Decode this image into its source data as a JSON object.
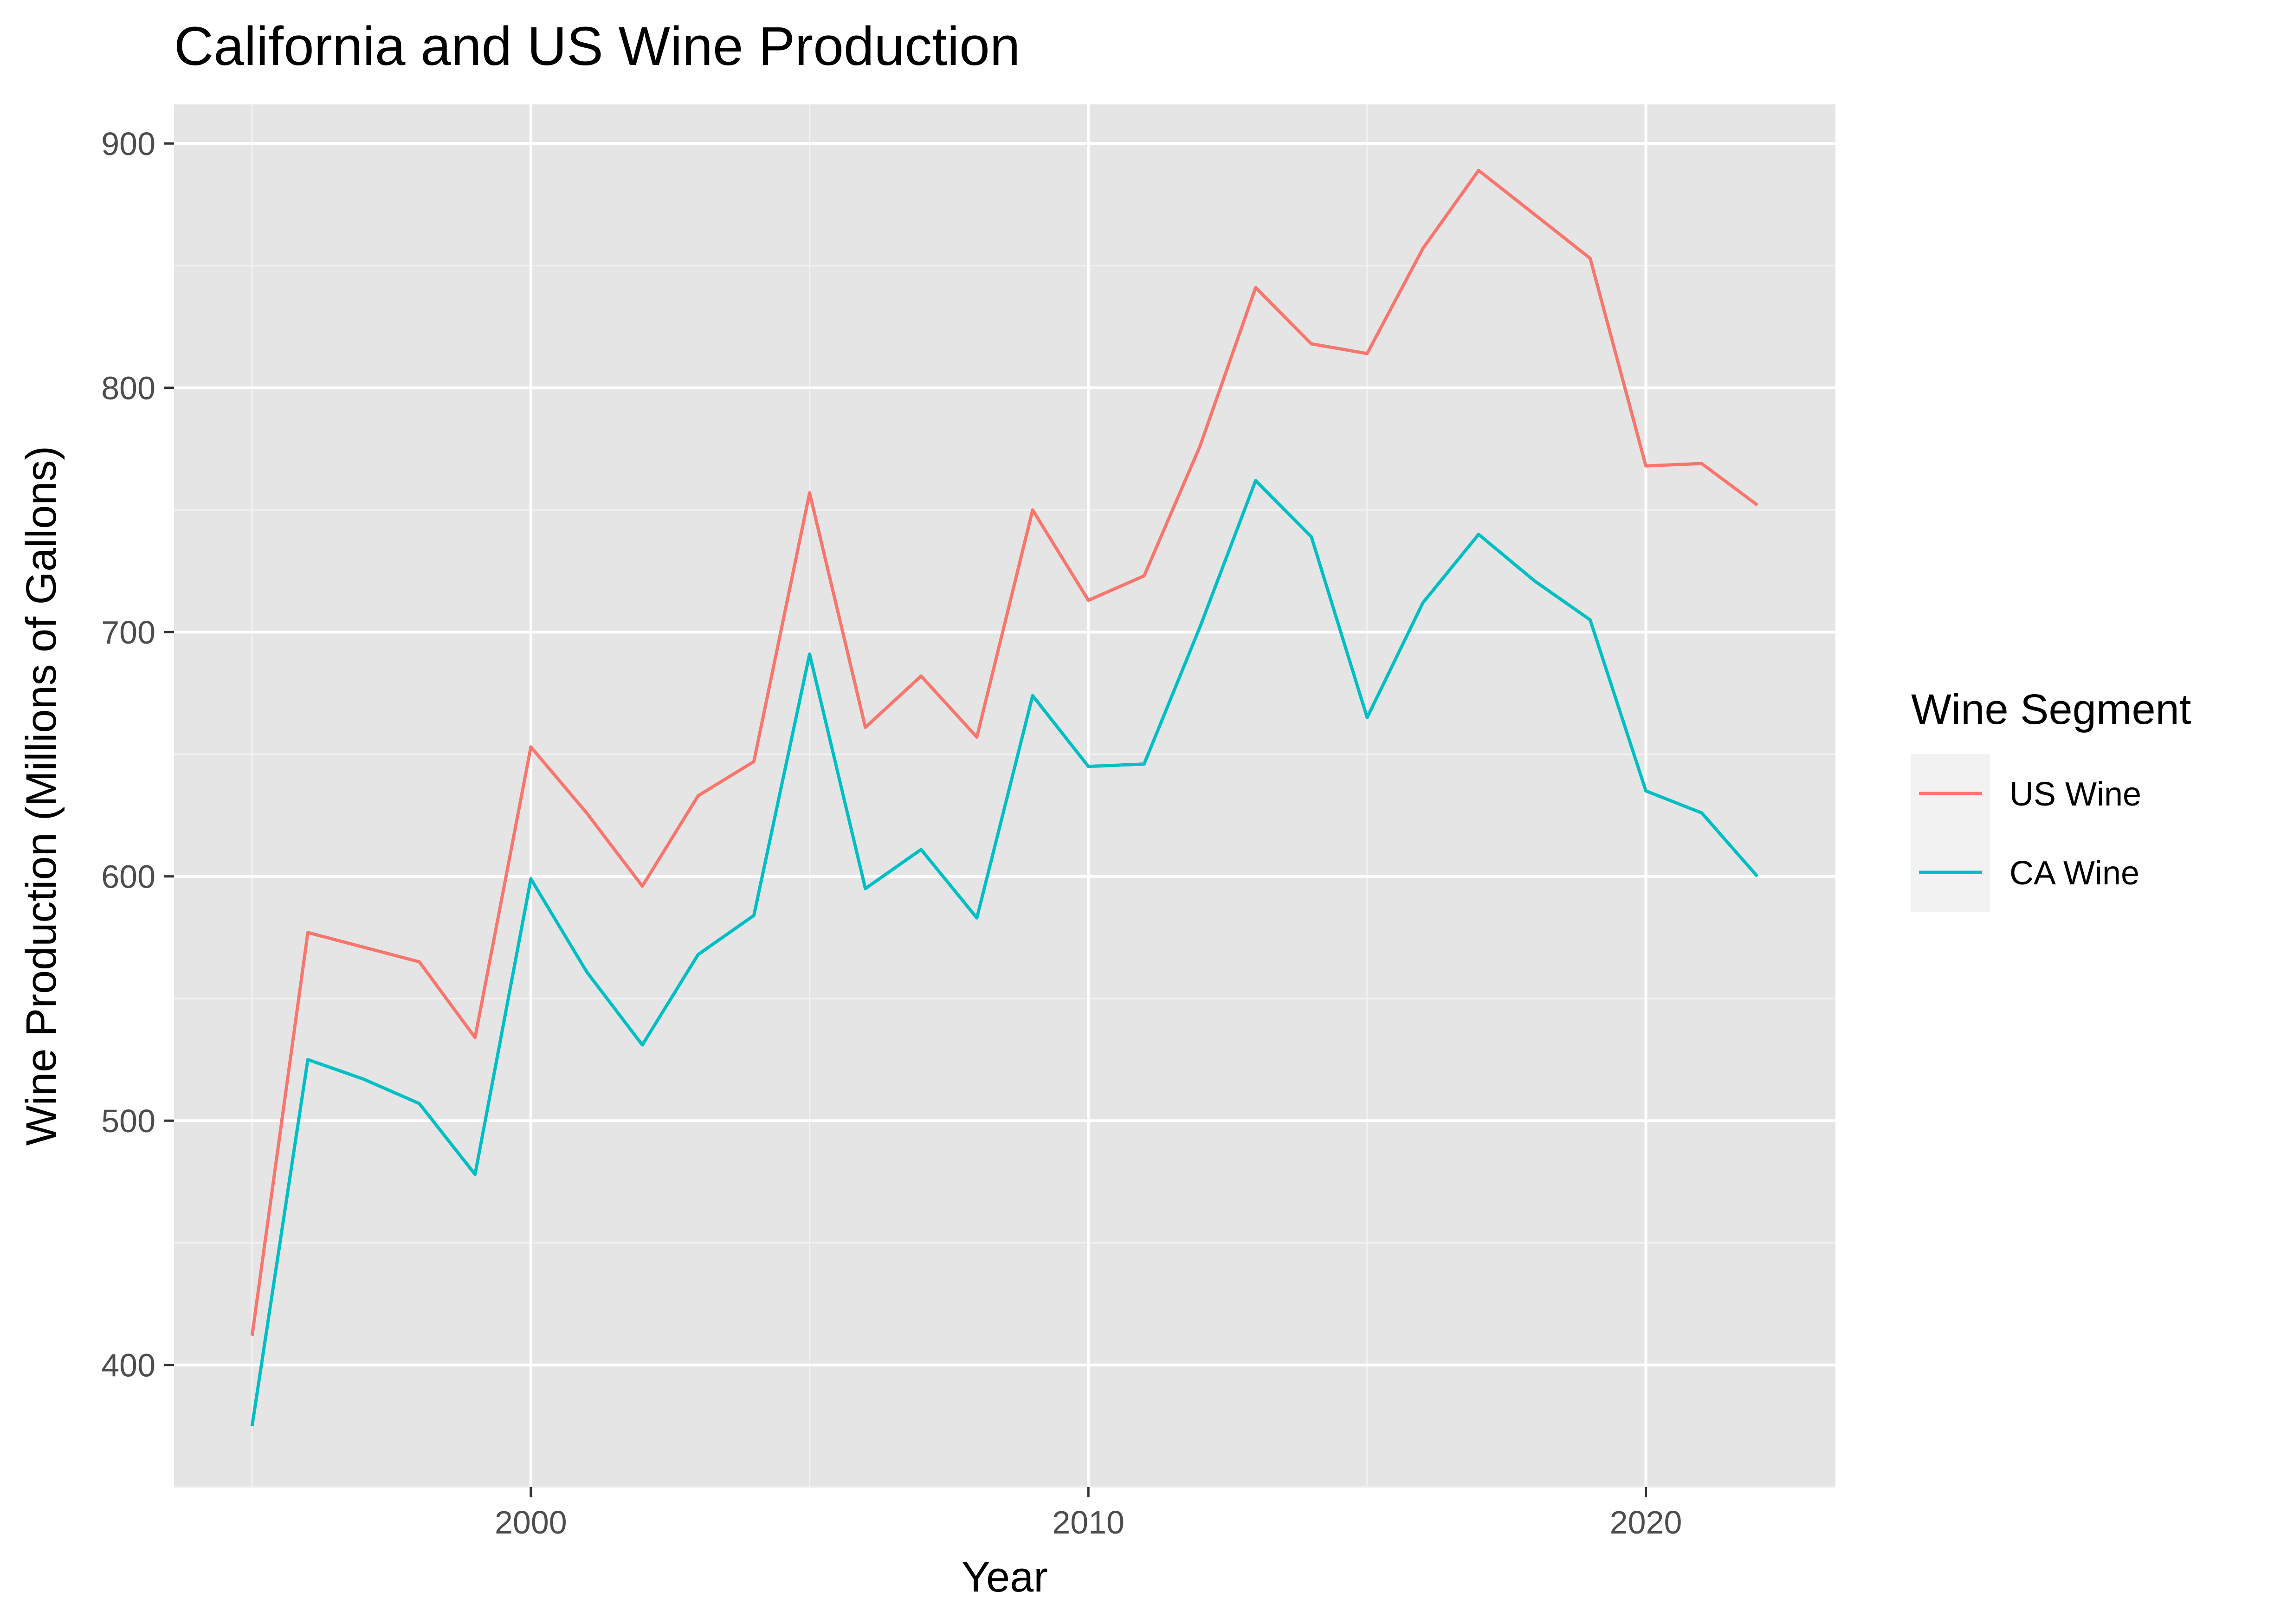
{
  "chart_data": {
    "type": "line",
    "title": "California and US Wine Production",
    "xlabel": "Year",
    "ylabel": "Wine Production (Millions of Gallons)",
    "xlim": [
      1993.6,
      2023.4
    ],
    "ylim": [
      350,
      916
    ],
    "x_ticks": [
      2000,
      2010,
      2020
    ],
    "y_ticks": [
      400,
      500,
      600,
      700,
      800,
      900
    ],
    "grid": true,
    "legend": {
      "title": "Wine Segment",
      "position": "right"
    },
    "x": [
      1995,
      1996,
      1997,
      1998,
      1999,
      2000,
      2001,
      2002,
      2003,
      2004,
      2005,
      2006,
      2007,
      2008,
      2009,
      2010,
      2011,
      2012,
      2013,
      2014,
      2015,
      2016,
      2017,
      2018,
      2019,
      2020,
      2021,
      2022
    ],
    "series": [
      {
        "name": "US Wine",
        "color": "#F8766D",
        "values": [
          412,
          577,
          571,
          565,
          534,
          653,
          626,
          596,
          633,
          647,
          757,
          661,
          682,
          657,
          750,
          713,
          723,
          776,
          841,
          818,
          814,
          857,
          889,
          871,
          853,
          768,
          769,
          752
        ]
      },
      {
        "name": "CA Wine",
        "color": "#00BFC4",
        "values": [
          375,
          525,
          517,
          507,
          478,
          599,
          561,
          531,
          568,
          584,
          691,
          595,
          611,
          583,
          674,
          645,
          646,
          702,
          762,
          739,
          665,
          712,
          740,
          721,
          705,
          635,
          626,
          600
        ]
      }
    ]
  }
}
